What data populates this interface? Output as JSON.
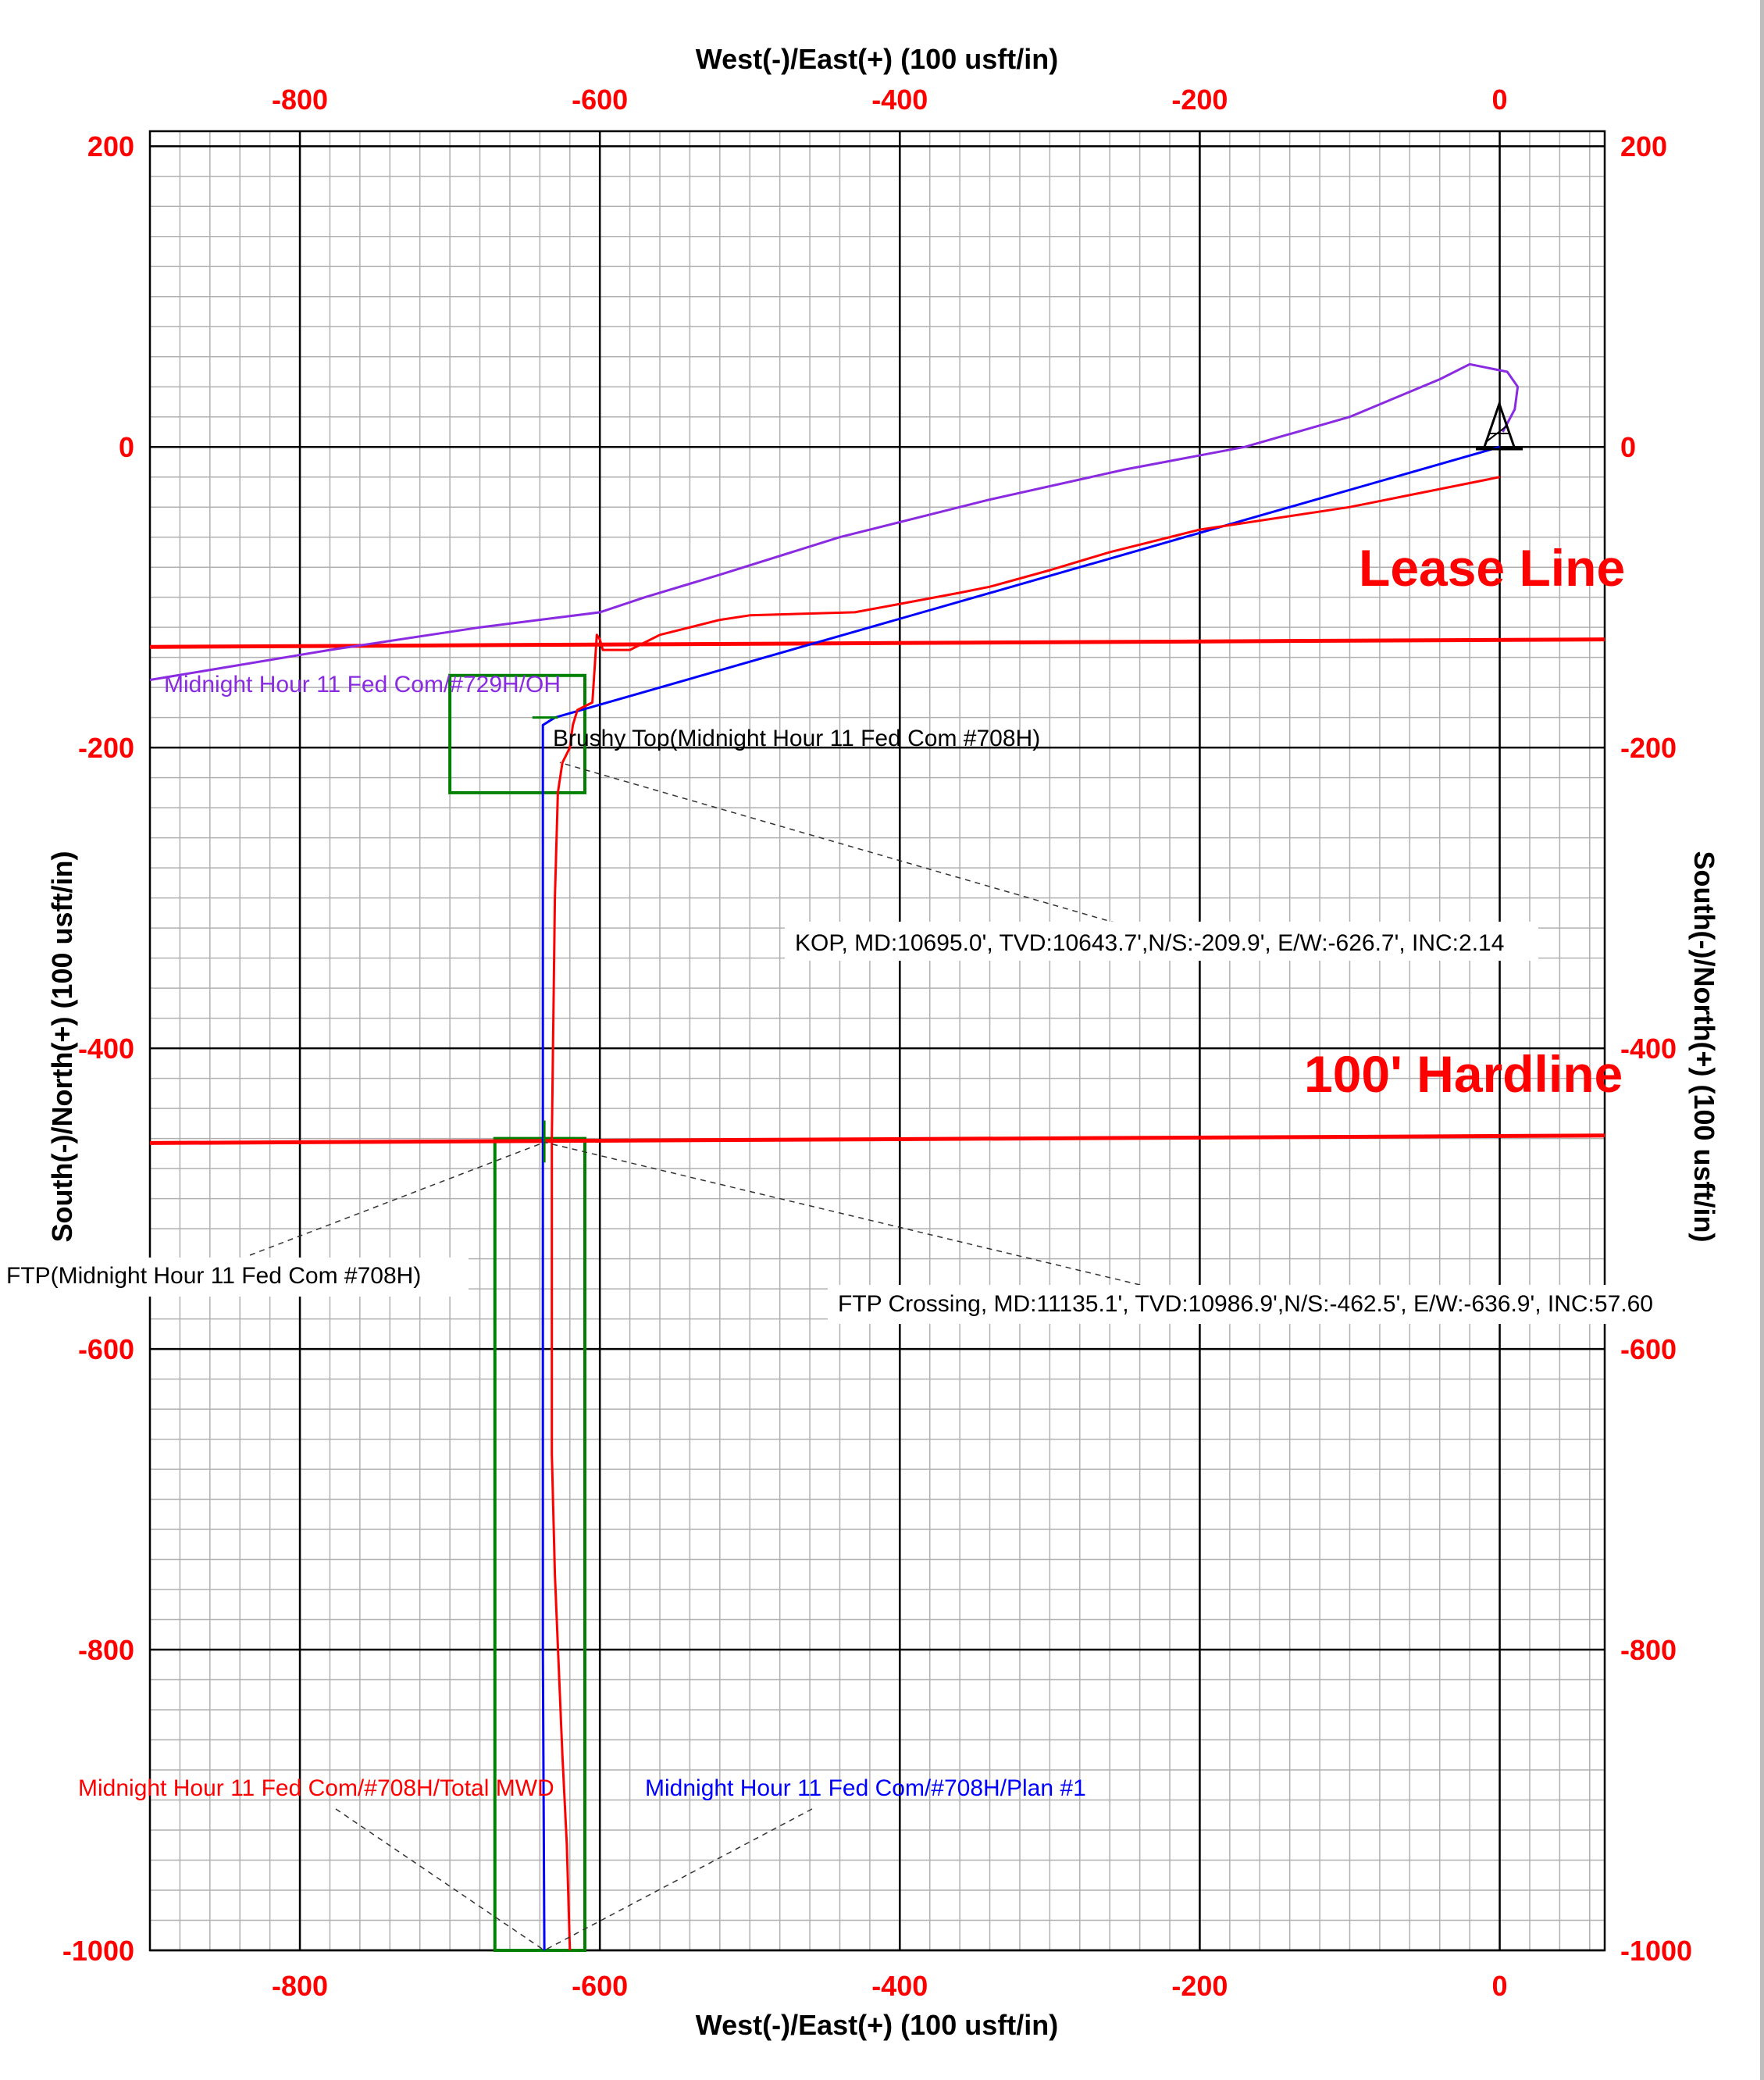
{
  "chart_data": {
    "type": "line",
    "title": "",
    "xlabel": "West(-)/East(+) (100 usft/in)",
    "ylabel": "South(-)/North(+) (100 usft/in)",
    "xlim": [
      -900,
      70
    ],
    "ylim": [
      -1000,
      210
    ],
    "xticks": [
      -800,
      -600,
      -400,
      -200,
      0
    ],
    "yticks": [
      200,
      0,
      -200,
      -400,
      -600,
      -800,
      -1000
    ],
    "grid": true,
    "colors": {
      "tick_labels": "#ff0000",
      "axis_titles": "#000000",
      "grid_major": "#000000",
      "grid_minor": "#b0b0b0",
      "plan": "#0000ff",
      "actual": "#ff0000",
      "offset": "#8a2be2",
      "target_box": "#008000"
    },
    "series": [
      {
        "name": "Midnight Hour 11 Fed Com/#729H/OH",
        "color": "#8a2be2",
        "x": [
          -900,
          -780,
          -680,
          -600,
          -570,
          -520,
          -440,
          -340,
          -250,
          -170,
          -100,
          -40,
          -20,
          5,
          12,
          10,
          2
        ],
        "y": [
          -155,
          -135,
          -120,
          -110,
          -100,
          -85,
          -60,
          -35,
          -15,
          0,
          20,
          45,
          55,
          50,
          40,
          25,
          10
        ]
      },
      {
        "name": "Midnight Hour 11 Fed Com/#708H/Plan #1",
        "color": "#0000ff",
        "x": [
          0,
          -630,
          -638,
          -638,
          -638,
          -637
        ],
        "y": [
          0,
          -180,
          -185,
          -460,
          -800,
          -1000
        ]
      },
      {
        "name": "Midnight Hour 11 Fed Com/#708H/Total MWD",
        "color": "#ff0000",
        "x": [
          0,
          -10,
          -100,
          -200,
          -260,
          -300,
          -340,
          -360,
          -430,
          -500,
          -520,
          -560,
          -580,
          -598,
          -600,
          -602,
          -605,
          -615,
          -618,
          -620,
          -625,
          -628,
          -630,
          -632,
          -632,
          -630,
          -625,
          -622,
          -620
        ],
        "y": [
          -20,
          -22,
          -40,
          -55,
          -70,
          -82,
          -93,
          -97,
          -110,
          -112,
          -115,
          -125,
          -135,
          -135,
          -128,
          -125,
          -170,
          -175,
          -185,
          -200,
          -210,
          -230,
          -300,
          -460,
          -670,
          -750,
          -870,
          -930,
          -1000
        ]
      }
    ],
    "hardlines": [
      {
        "label": "Lease Line",
        "x": [
          -900,
          70
        ],
        "y": [
          -133,
          -128
        ]
      },
      {
        "label": "100' Hardline",
        "x": [
          -900,
          70
        ],
        "y": [
          -463,
          -458
        ]
      }
    ],
    "target_boxes": [
      {
        "x": [
          -700,
          -610
        ],
        "y": [
          -230,
          -152
        ]
      },
      {
        "x": [
          -670,
          -610
        ],
        "y": [
          -1000,
          -460
        ]
      }
    ],
    "labels": {
      "offset_well": "Midnight Hour 11 Fed Com/#729H/OH",
      "brushy_top": "Brushy Top(Midnight Hour 11 Fed Com #708H)",
      "kop": "KOP, MD:10695.0', TVD:10643.7',N/S:-209.9', E/W:-626.7', INC:2.14",
      "ftp": "FTP(Midnight Hour 11 Fed Com #708H)",
      "ftp_crossing": "FTP Crossing, MD:11135.1', TVD:10986.9',N/S:-462.5', E/W:-636.9', INC:57.60",
      "actual_well": "Midnight Hour 11 Fed Com/#708H/Total MWD",
      "plan_well": "Midnight Hour 11 Fed Com/#708H/Plan #1",
      "lease_line": "Lease Line",
      "hardline": "100' Hardline"
    },
    "surface_location": {
      "x": 0,
      "y": 0,
      "icon": "rig-derrick-icon"
    }
  }
}
